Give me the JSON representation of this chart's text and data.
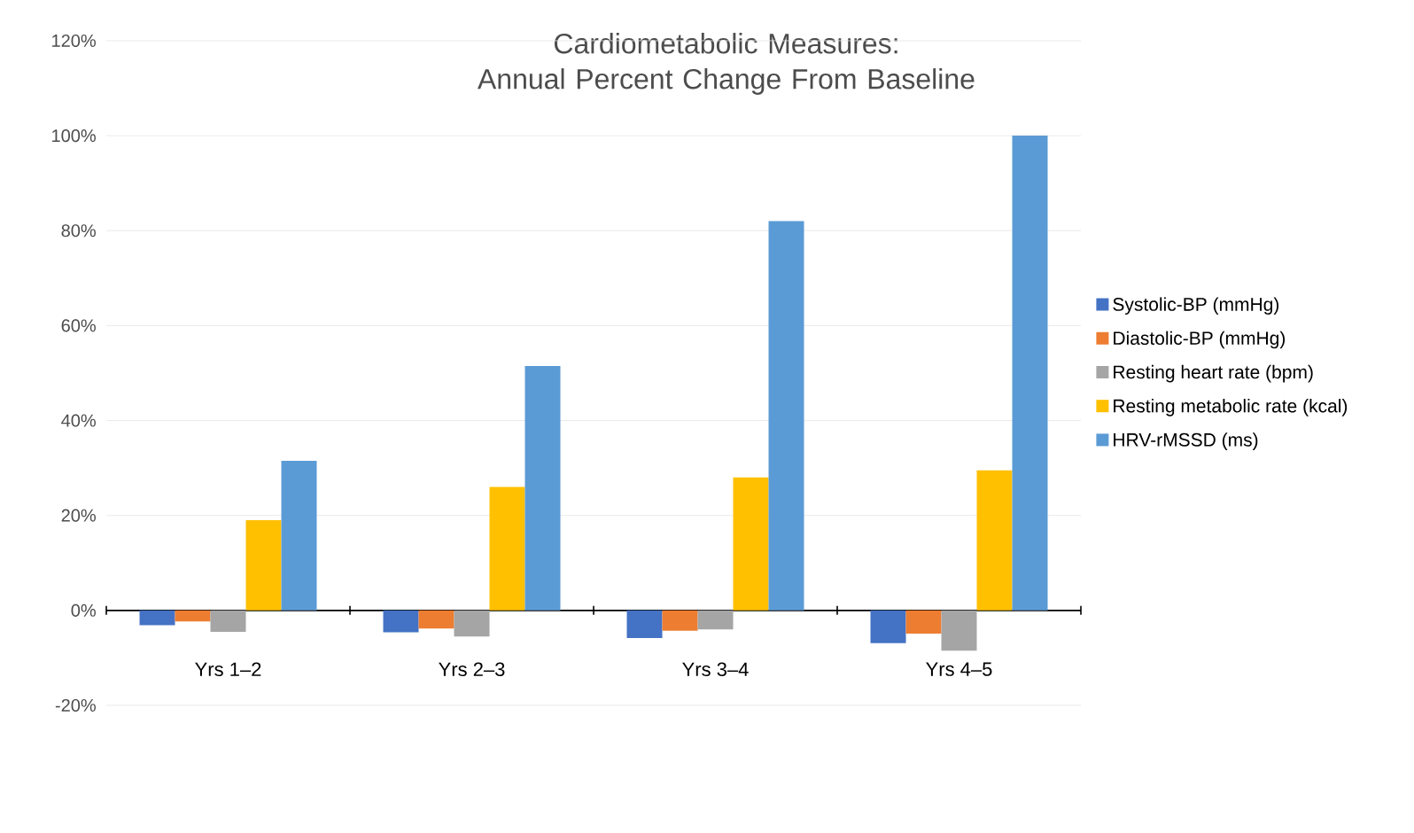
{
  "chart_data": {
    "type": "bar",
    "title": "Cardiometabolic Measures:\nAnnual Percent Change From Baseline",
    "categories": [
      "Yrs 1–2",
      "Yrs 2–3",
      "Yrs 3–4",
      "Yrs 4–5"
    ],
    "series": [
      {
        "name": "Systolic-BP (mmHg)",
        "color": "#4472c4",
        "values": [
          -3.1,
          -4.6,
          -5.8,
          -6.9
        ]
      },
      {
        "name": "Diastolic-BP (mmHg)",
        "color": "#ed7d31",
        "values": [
          -2.3,
          -3.8,
          -4.3,
          -4.9
        ]
      },
      {
        "name": "Resting heart rate (bpm)",
        "color": "#a5a5a5",
        "values": [
          -4.5,
          -5.5,
          -4.0,
          -8.5
        ]
      },
      {
        "name": "Resting metabolic rate (kcal)",
        "color": "#ffc000",
        "values": [
          19,
          26,
          28,
          29.5
        ]
      },
      {
        "name": "HRV-rMSSD (ms)",
        "color": "#5b9bd5",
        "values": [
          31.5,
          51.5,
          82,
          100
        ]
      }
    ],
    "ylim": [
      -20,
      120
    ],
    "yticks": [
      {
        "value": -20,
        "label": "-20%"
      },
      {
        "value": 0,
        "label": "0%"
      },
      {
        "value": 20,
        "label": "20%"
      },
      {
        "value": 40,
        "label": "40%"
      },
      {
        "value": 60,
        "label": "60%"
      },
      {
        "value": 80,
        "label": "80%"
      },
      {
        "value": 100,
        "label": "100%"
      },
      {
        "value": 120,
        "label": "120%"
      }
    ],
    "grid": "y",
    "legend": "right"
  }
}
